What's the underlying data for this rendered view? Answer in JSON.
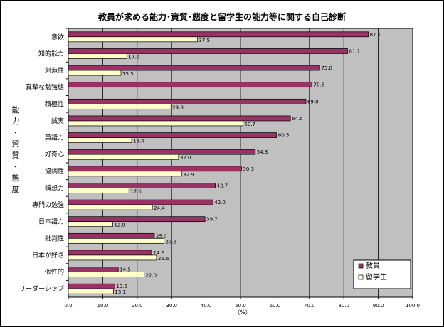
{
  "chart_data": {
    "type": "bar",
    "orientation": "horizontal",
    "title": "教員が求める能力･資質･態度と留学生の能力等に関する自己診断",
    "xlabel": "（%）",
    "ylabel": "能力・資質・態度",
    "xlim": [
      0,
      100
    ],
    "x_ticks": [
      "0.0",
      "10.0",
      "20.0",
      "30.0",
      "40.0",
      "50.0",
      "60.0",
      "70.0",
      "80.0",
      "90.0",
      "100.0"
    ],
    "grid": "vertical",
    "legend_position": "bottom-right",
    "categories": [
      "意欲",
      "知的能力",
      "創造性",
      "真摯な勉強態",
      "積極性",
      "誠実",
      "英語力",
      "好奇心",
      "協調性",
      "構想力",
      "専門の勉強",
      "日本語力",
      "批判性",
      "日本が好き",
      "個性的",
      "リーダーシップ"
    ],
    "series": [
      {
        "name": "教員",
        "color": "#993366",
        "values": [
          87.1,
          81.1,
          73.0,
          70.8,
          69.0,
          64.5,
          60.5,
          54.3,
          50.3,
          42.7,
          42.0,
          39.7,
          25.0,
          24.2,
          14.5,
          13.5
        ],
        "labels": [
          "87.1",
          "81.1",
          "73.0",
          "70.8",
          "69.0",
          "64.5",
          "60.5",
          "54.3",
          "50.3",
          "42.7",
          "42.0",
          "39.7",
          "25.0",
          "24.2",
          "14.5",
          "13.5"
        ]
      },
      {
        "name": "留学生",
        "color": "#ffffcc",
        "values": [
          37.5,
          17.0,
          15.3,
          null,
          29.8,
          50.7,
          18.4,
          32.0,
          32.9,
          17.6,
          24.4,
          12.9,
          27.8,
          25.6,
          22.0,
          13.1
        ],
        "labels": [
          "37.5",
          "17.0",
          "15.3",
          "",
          "29.8",
          "50.7",
          "18.4",
          "32.0",
          "32.9",
          "17.6",
          "24.4",
          "12.9",
          "27.8",
          "25.6",
          "22.0",
          "13.1"
        ]
      }
    ],
    "plot_background": "#c0c0c0",
    "gridline_color": "#000000"
  }
}
